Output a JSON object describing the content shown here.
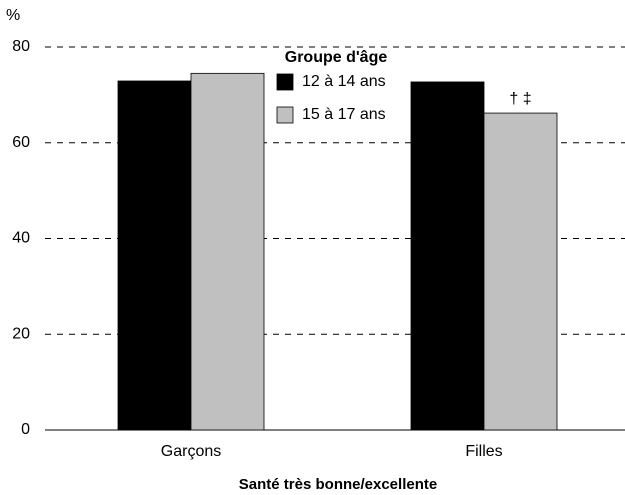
{
  "chart_data": {
    "type": "bar",
    "y_unit": "%",
    "xlabel": "Santé très bonne/excellente",
    "legend_title": "Groupe d'âge",
    "categories": [
      "Garçons",
      "Filles"
    ],
    "series": [
      {
        "name": "12 à 14 ans",
        "color": "#000000",
        "values": [
          72.9,
          72.7
        ]
      },
      {
        "name": "15 à 17 ans",
        "color": "#c0c0c0",
        "values": [
          74.5,
          66.2
        ]
      }
    ],
    "annotation": "† ‡",
    "ylim": [
      0,
      80
    ],
    "yticks": [
      0,
      20,
      40,
      60,
      80
    ],
    "grid": true
  }
}
